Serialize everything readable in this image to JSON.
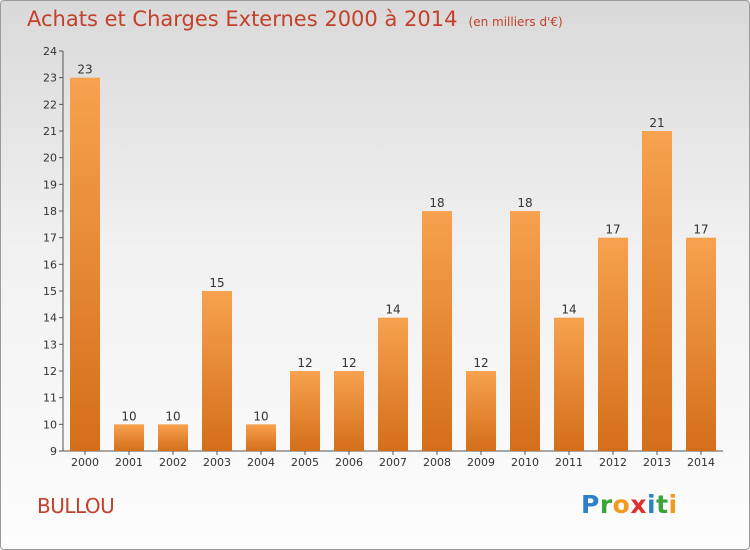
{
  "header": {
    "title": "Achats et Charges Externes 2000 à 2014",
    "subtitle": "(en milliers d'€)"
  },
  "commune": "BULLOU",
  "logo": {
    "letters": [
      {
        "char": "P",
        "color": "#2f80c9"
      },
      {
        "char": "r",
        "color": "#3aa33a"
      },
      {
        "char": "o",
        "color": "#f29a1c"
      },
      {
        "char": "x",
        "color": "#e0302a"
      },
      {
        "char": "i",
        "color": "#2f80c9"
      },
      {
        "char": "t",
        "color": "#3aa33a"
      },
      {
        "char": "i",
        "color": "#f29a1c"
      }
    ]
  },
  "colors": {
    "title": "#c4402b",
    "bar_light": "#f7a24e",
    "bar_dark": "#d46e1a",
    "gridline": "#bbbbbb"
  },
  "chart_data": {
    "type": "bar",
    "title": "Achats et Charges Externes 2000 à 2014",
    "subtitle": "(en milliers d'€)",
    "xlabel": "",
    "ylabel": "",
    "categories": [
      "2000",
      "2001",
      "2002",
      "2003",
      "2004",
      "2005",
      "2006",
      "2007",
      "2008",
      "2009",
      "2010",
      "2011",
      "2012",
      "2013",
      "2014"
    ],
    "values": [
      23,
      10,
      10,
      15,
      10,
      12,
      12,
      14,
      18,
      12,
      18,
      14,
      17,
      21,
      17
    ],
    "ylim": [
      9,
      24
    ],
    "yticks": [
      9,
      10,
      11,
      12,
      13,
      14,
      15,
      16,
      17,
      18,
      19,
      20,
      21,
      22,
      23,
      24
    ],
    "grid": false,
    "legend": "none"
  }
}
